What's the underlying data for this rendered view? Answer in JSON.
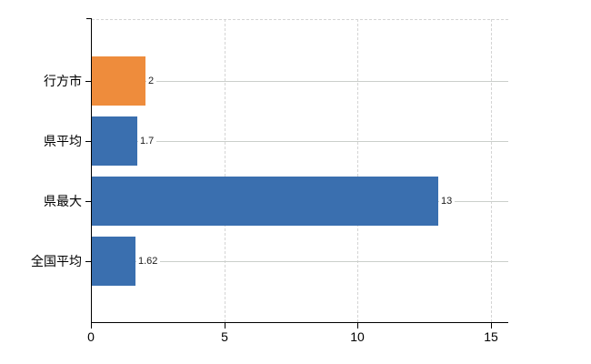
{
  "chart_data": {
    "type": "bar",
    "orientation": "horizontal",
    "title": "",
    "xlabel": "",
    "ylabel": "",
    "categories": [
      "行方市",
      "県平均",
      "県最大",
      "全国平均"
    ],
    "values": [
      2,
      1.7,
      13,
      1.62
    ],
    "value_labels": [
      "2",
      "1.7",
      "13",
      "1.62"
    ],
    "bar_colors": [
      "#ee8c3c",
      "#3a6faf",
      "#3a6faf",
      "#3a6faf"
    ],
    "highlight_color": "#ee8c3c",
    "default_color": "#3a6faf",
    "xlim": [
      0,
      15.6
    ],
    "xticks": [
      0,
      5,
      10,
      15
    ],
    "xtick_labels": [
      "0",
      "5",
      "10",
      "15"
    ],
    "grid": "vertical-dashed",
    "row_guide_lines": true,
    "legend": "none",
    "background": "#ffffff",
    "colors": {
      "axis": "#000000",
      "gridline": "#d4d4d4",
      "row_line": "#cbcfcb",
      "text": "#000000"
    }
  }
}
